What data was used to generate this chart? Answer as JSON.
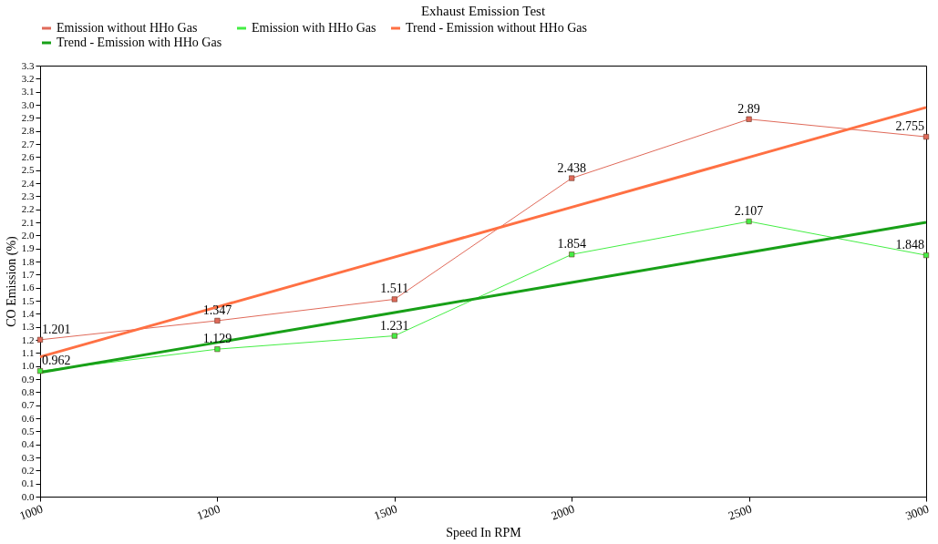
{
  "chart_data": {
    "type": "line",
    "title": "Exhaust Emission Test",
    "xlabel": "Speed In RPM",
    "ylabel": "CO Emission (%)",
    "categories": [
      "1000",
      "1200",
      "1500",
      "2000",
      "2500",
      "3000"
    ],
    "ylim": [
      0,
      3.3
    ],
    "yticks": [
      {
        "value": 0,
        "label": "0.0"
      },
      {
        "value": 0.1,
        "label": "0.1"
      },
      {
        "value": 0.2,
        "label": "0.2"
      },
      {
        "value": 0.3,
        "label": "0.3"
      },
      {
        "value": 0.4,
        "label": "0.4"
      },
      {
        "value": 0.5,
        "label": "0.5"
      },
      {
        "value": 0.6,
        "label": "0.6"
      },
      {
        "value": 0.7,
        "label": "0.7"
      },
      {
        "value": 0.8,
        "label": "0.8"
      },
      {
        "value": 0.9,
        "label": "0.9"
      },
      {
        "value": 1,
        "label": "1.0"
      },
      {
        "value": 1.1,
        "label": "1.1"
      },
      {
        "value": 1.2,
        "label": "1.2"
      },
      {
        "value": 1.3,
        "label": "1.3"
      },
      {
        "value": 1.4,
        "label": "1.4"
      },
      {
        "value": 1.5,
        "label": "1.5"
      },
      {
        "value": 1.6,
        "label": "1.6"
      },
      {
        "value": 1.7,
        "label": "1.7"
      },
      {
        "value": 1.8,
        "label": "1.8"
      },
      {
        "value": 1.9,
        "label": "1.9"
      },
      {
        "value": 2,
        "label": "2.0"
      },
      {
        "value": 2.1,
        "label": "2.1"
      },
      {
        "value": 2.2,
        "label": "2.2"
      },
      {
        "value": 2.3,
        "label": "2.3"
      },
      {
        "value": 2.4,
        "label": "2.4"
      },
      {
        "value": 2.5,
        "label": "2.5"
      },
      {
        "value": 2.6,
        "label": "2.6"
      },
      {
        "value": 2.7,
        "label": "2.7"
      },
      {
        "value": 2.8,
        "label": "2.8"
      },
      {
        "value": 2.9,
        "label": "2.9"
      },
      {
        "value": 3,
        "label": "3.0"
      },
      {
        "value": 3.1,
        "label": "3.1"
      },
      {
        "value": 3.2,
        "label": "3.2"
      },
      {
        "value": 3.3,
        "label": "3.3"
      }
    ],
    "grid": false,
    "legend": "top left",
    "series": [
      {
        "name": "Emission without  HHo Gas",
        "color": "#e06a5a",
        "marker": "square",
        "values": [
          1.201,
          1.347,
          1.511,
          2.438,
          2.89,
          2.755
        ],
        "value_labels": [
          "1.201",
          "1.347",
          "1.511",
          "2.438",
          "2.89",
          "2.755"
        ]
      },
      {
        "name": "Emission with HHo Gas",
        "color": "#44ee44",
        "marker": "square",
        "values": [
          0.962,
          1.129,
          1.231,
          1.854,
          2.107,
          1.848
        ],
        "value_labels": [
          "0.962",
          "1.129",
          "1.231",
          "1.854",
          "2.107",
          "1.848"
        ]
      },
      {
        "name": "Trend - Emission without  HHo Gas",
        "color": "#ff7043",
        "marker": "none",
        "values": [
          1.07,
          1.452,
          1.834,
          2.216,
          2.598,
          2.98
        ]
      },
      {
        "name": "Trend - Emission with HHo Gas",
        "color": "#18a018",
        "marker": "none",
        "values": [
          0.95,
          1.18,
          1.41,
          1.64,
          1.87,
          2.1
        ]
      }
    ]
  }
}
